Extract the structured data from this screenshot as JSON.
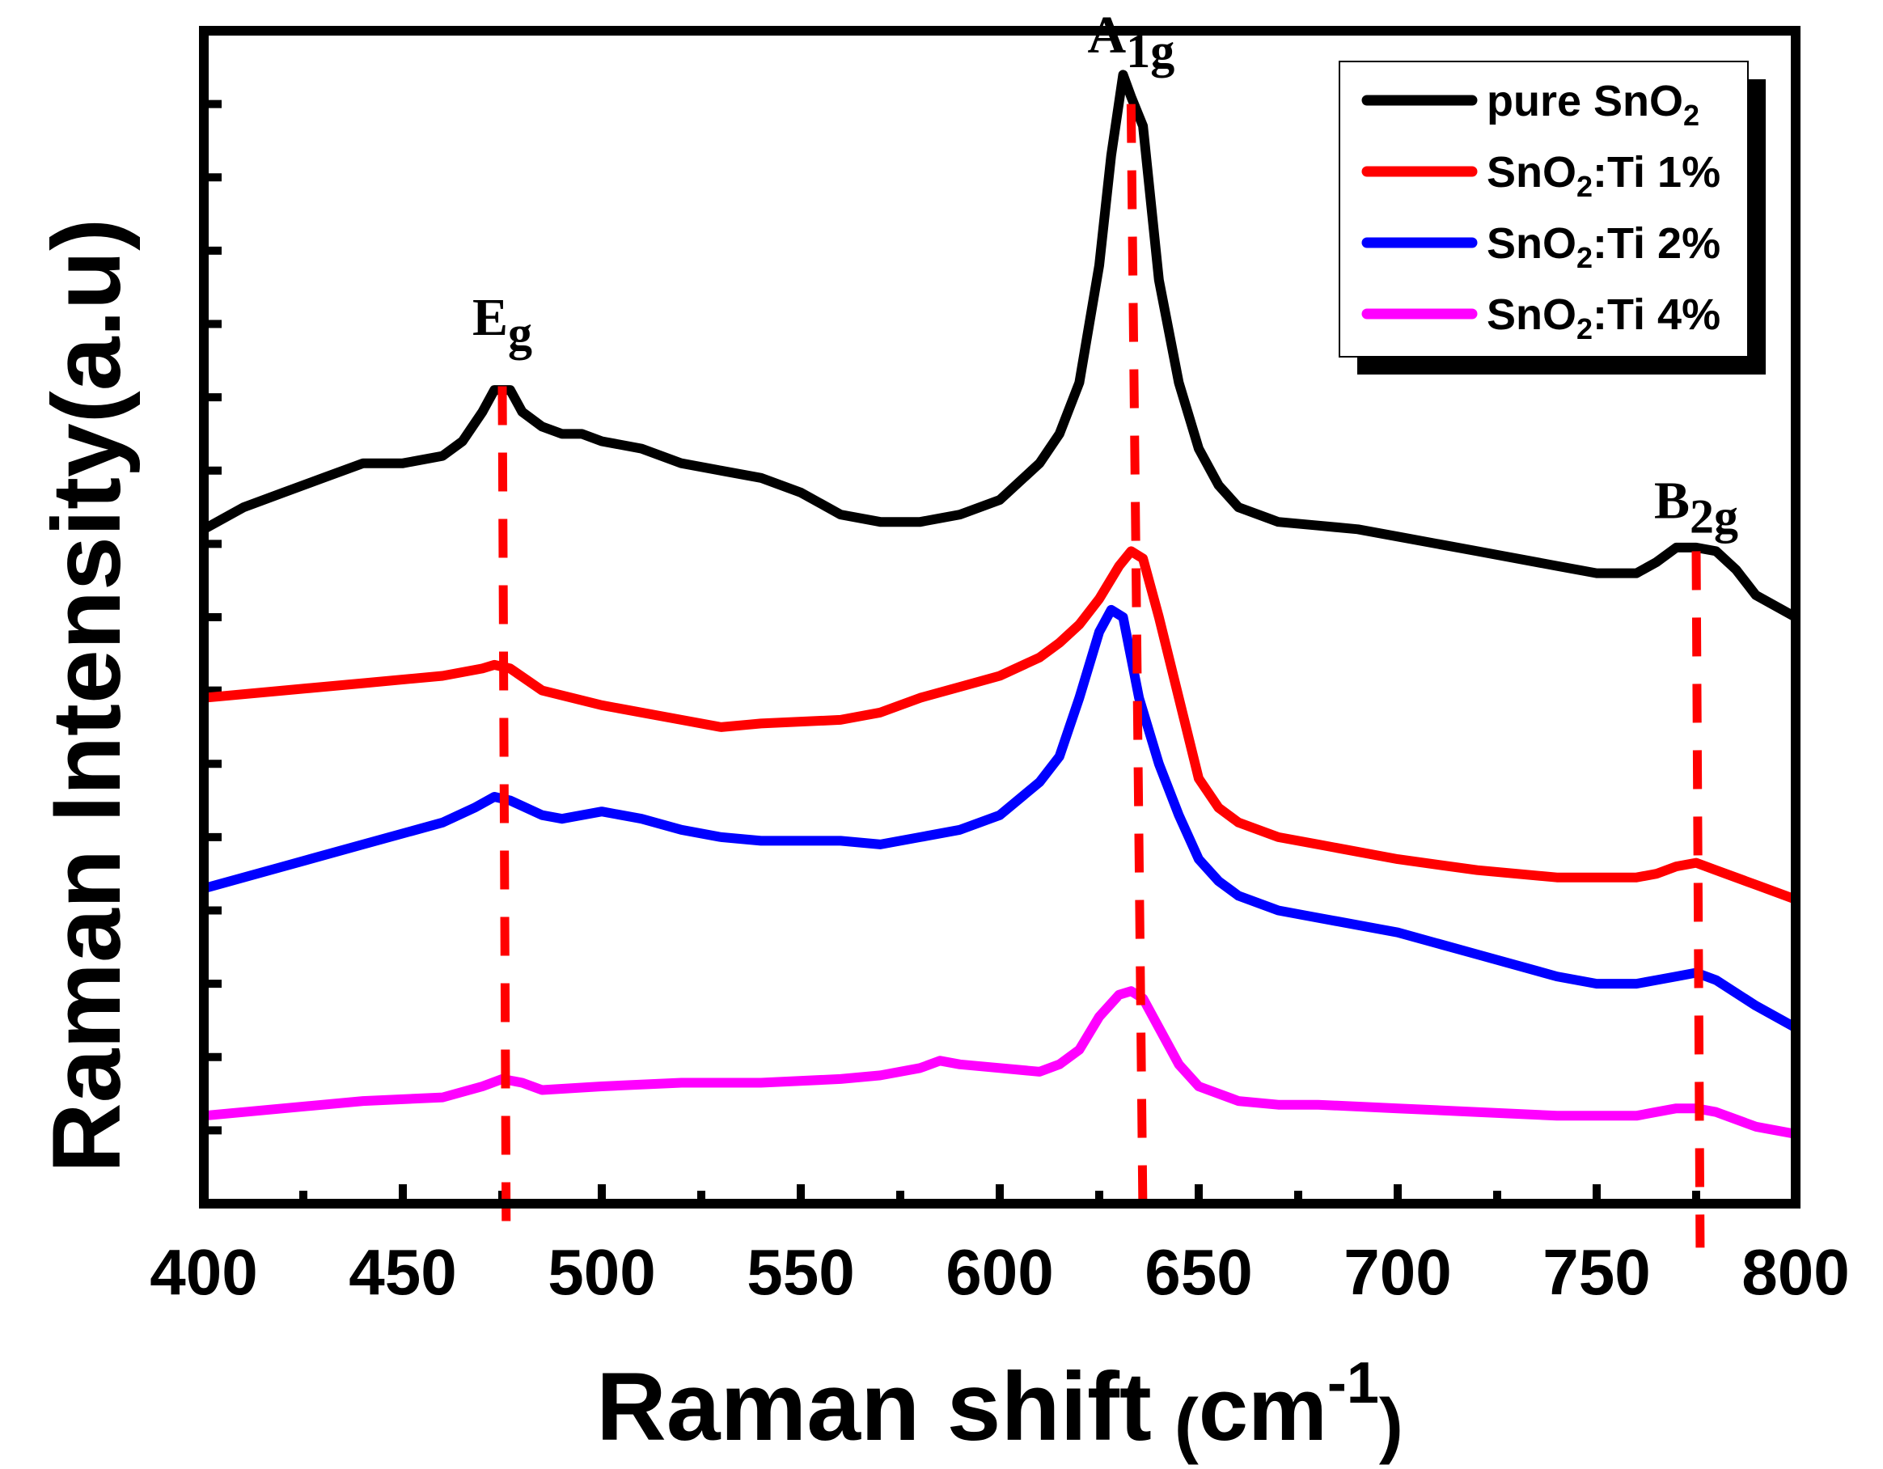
{
  "chart_data": {
    "type": "line",
    "title": "",
    "xlabel": "Raman shift",
    "xlabel_unit_base": "cm",
    "xlabel_unit_exp": "-1",
    "ylabel": "Raman Intensity(a.u)",
    "xlim": [
      400,
      800
    ],
    "ylim": [
      0,
      16
    ],
    "x_ticks": [
      400,
      450,
      500,
      550,
      600,
      650,
      700,
      750,
      800
    ],
    "x_tick_labels": [
      "400",
      "450",
      "500",
      "550",
      "600",
      "650",
      "700",
      "750",
      "800"
    ],
    "y_tick_labels_shown": false,
    "legend_position": "top-right",
    "annotations": [
      {
        "label": "E",
        "sub": "g",
        "x": 475
      },
      {
        "label": "A",
        "sub": "1g",
        "x": 633
      },
      {
        "label": "B",
        "sub": "2g",
        "x": 775
      }
    ],
    "series": [
      {
        "name": "pure SnO2",
        "legend_base": "pure SnO",
        "legend_sub": "2",
        "legend_suffix": "",
        "color": "#000000",
        "x": [
          400,
          410,
          420,
          430,
          440,
          450,
          460,
          465,
          470,
          473,
          477,
          480,
          485,
          490,
          495,
          500,
          510,
          520,
          530,
          540,
          550,
          560,
          570,
          580,
          590,
          600,
          610,
          615,
          620,
          625,
          628,
          631,
          633,
          636,
          640,
          645,
          650,
          655,
          660,
          670,
          680,
          690,
          700,
          720,
          740,
          750,
          760,
          765,
          770,
          775,
          780,
          785,
          790,
          800
        ],
        "y": [
          9.2,
          9.5,
          9.7,
          9.9,
          10.1,
          10.1,
          10.2,
          10.4,
          10.8,
          11.1,
          11.1,
          10.8,
          10.6,
          10.5,
          10.5,
          10.4,
          10.3,
          10.1,
          10.0,
          9.9,
          9.7,
          9.4,
          9.3,
          9.3,
          9.4,
          9.6,
          10.1,
          10.5,
          11.2,
          12.8,
          14.3,
          15.4,
          15.1,
          14.7,
          12.6,
          11.2,
          10.3,
          9.8,
          9.5,
          9.3,
          9.25,
          9.2,
          9.1,
          8.9,
          8.7,
          8.6,
          8.6,
          8.75,
          8.95,
          8.95,
          8.9,
          8.65,
          8.3,
          8.0
        ]
      },
      {
        "name": "SnO2:Ti 1%",
        "legend_base": "SnO",
        "legend_sub": "2",
        "legend_suffix": ":Ti 1%",
        "color": "#ff0000",
        "x": [
          400,
          420,
          440,
          460,
          470,
          473,
          477,
          485,
          500,
          520,
          530,
          540,
          560,
          570,
          580,
          590,
          600,
          610,
          615,
          620,
          625,
          630,
          633,
          636,
          640,
          645,
          650,
          655,
          660,
          670,
          680,
          700,
          720,
          740,
          750,
          760,
          765,
          770,
          775,
          780,
          790,
          800
        ],
        "y": [
          6.9,
          7.0,
          7.1,
          7.2,
          7.3,
          7.35,
          7.3,
          7.0,
          6.8,
          6.6,
          6.5,
          6.55,
          6.6,
          6.7,
          6.9,
          7.05,
          7.2,
          7.45,
          7.65,
          7.9,
          8.25,
          8.7,
          8.9,
          8.8,
          8.0,
          6.9,
          5.8,
          5.4,
          5.2,
          5.0,
          4.9,
          4.7,
          4.55,
          4.45,
          4.45,
          4.45,
          4.5,
          4.6,
          4.65,
          4.55,
          4.35,
          4.15
        ]
      },
      {
        "name": "SnO2:Ti 2%",
        "legend_base": "SnO",
        "legend_sub": "2",
        "legend_suffix": ":Ti 2%",
        "color": "#0000ff",
        "x": [
          400,
          420,
          440,
          460,
          468,
          473,
          477,
          485,
          490,
          500,
          510,
          520,
          530,
          540,
          560,
          570,
          580,
          590,
          600,
          610,
          615,
          620,
          625,
          628,
          631,
          635,
          640,
          645,
          650,
          655,
          660,
          670,
          680,
          700,
          720,
          740,
          750,
          760,
          765,
          770,
          775,
          780,
          790,
          800
        ],
        "y": [
          4.3,
          4.6,
          4.9,
          5.2,
          5.4,
          5.55,
          5.5,
          5.3,
          5.25,
          5.35,
          5.25,
          5.1,
          5.0,
          4.95,
          4.95,
          4.9,
          5.0,
          5.1,
          5.3,
          5.75,
          6.1,
          6.9,
          7.8,
          8.1,
          8.0,
          6.9,
          6.0,
          5.3,
          4.7,
          4.4,
          4.2,
          4.0,
          3.9,
          3.7,
          3.4,
          3.1,
          3.0,
          3.0,
          3.05,
          3.1,
          3.15,
          3.05,
          2.7,
          2.4
        ]
      },
      {
        "name": "SnO2:Ti 4%",
        "legend_base": "SnO",
        "legend_sub": "2",
        "legend_suffix": ":Ti 4%",
        "color": "#ff00ff",
        "x": [
          400,
          420,
          440,
          460,
          470,
          475,
          480,
          485,
          500,
          520,
          540,
          560,
          570,
          580,
          585,
          590,
          600,
          610,
          615,
          620,
          625,
          630,
          633,
          636,
          640,
          645,
          650,
          660,
          670,
          680,
          700,
          720,
          740,
          750,
          760,
          765,
          770,
          775,
          780,
          790,
          800
        ],
        "y": [
          1.2,
          1.3,
          1.4,
          1.45,
          1.6,
          1.7,
          1.65,
          1.55,
          1.6,
          1.65,
          1.65,
          1.7,
          1.75,
          1.85,
          1.95,
          1.9,
          1.85,
          1.8,
          1.9,
          2.1,
          2.55,
          2.85,
          2.9,
          2.8,
          2.4,
          1.9,
          1.6,
          1.4,
          1.35,
          1.35,
          1.3,
          1.25,
          1.2,
          1.2,
          1.2,
          1.25,
          1.3,
          1.3,
          1.25,
          1.05,
          0.95
        ]
      }
    ]
  }
}
